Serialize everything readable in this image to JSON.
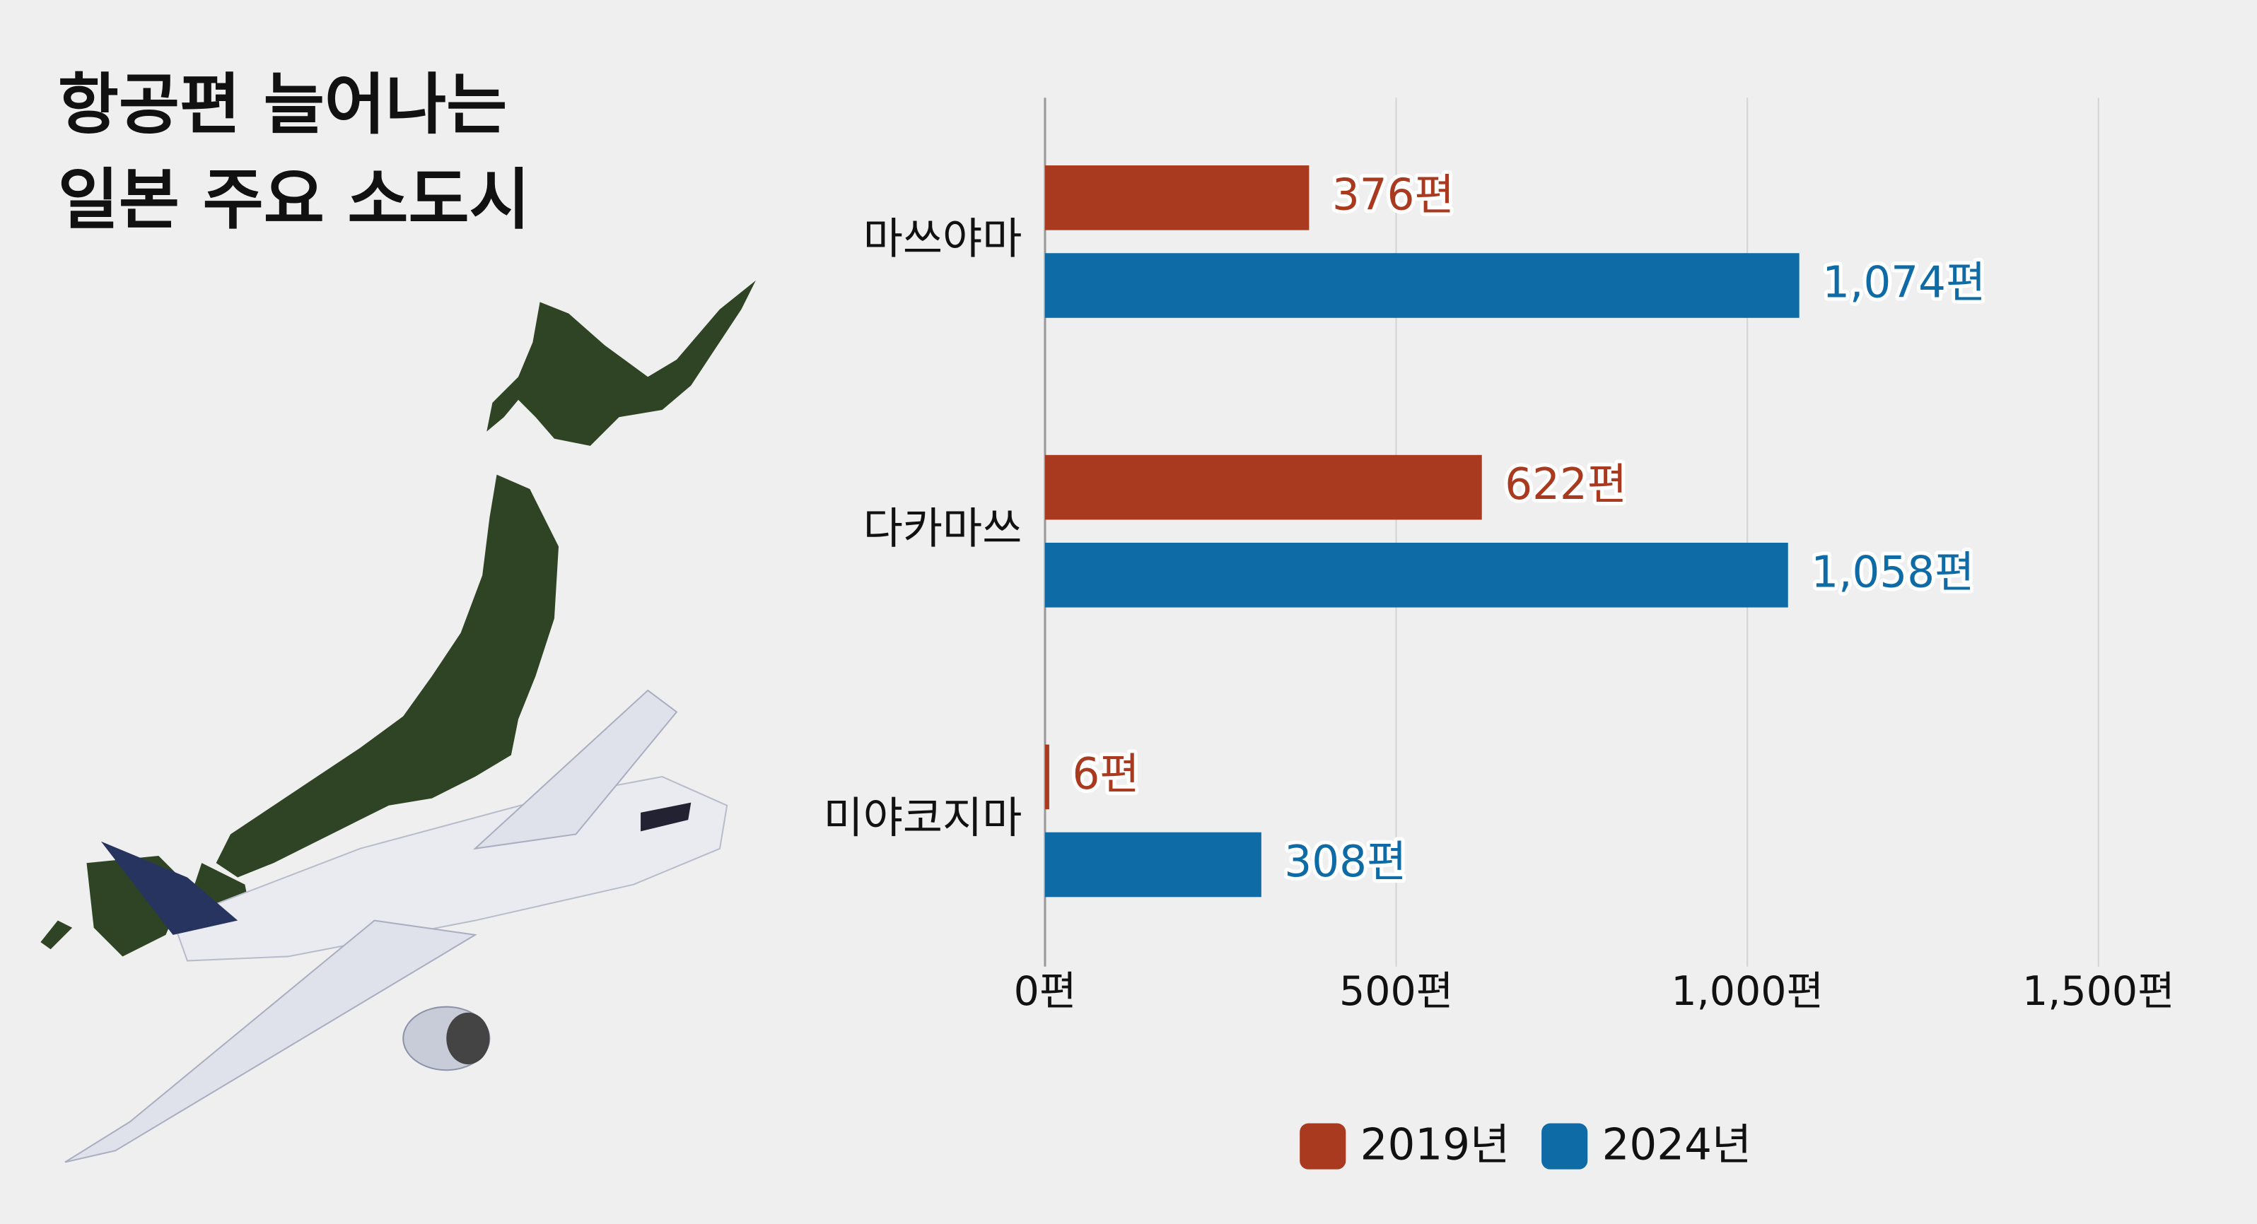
{
  "chart_data": {
    "type": "bar",
    "orientation": "horizontal",
    "title": [
      "항공편 늘어나는",
      "일본 주요 소도시"
    ],
    "categories": [
      "마쓰야마",
      "다카마쓰",
      "미야코지마"
    ],
    "series": [
      {
        "name": "2019년",
        "color": "#a93a1f",
        "values": [
          376,
          622,
          6
        ],
        "value_labels": [
          "376편",
          "622편",
          "6편"
        ]
      },
      {
        "name": "2024년",
        "color": "#0f6ba5",
        "values": [
          1074,
          1058,
          308
        ],
        "value_labels": [
          "1,074편",
          "1,058편",
          "308편"
        ]
      }
    ],
    "xlim": [
      0,
      1500
    ],
    "xticks": [
      {
        "value": 0,
        "label": "0편"
      },
      {
        "value": 500,
        "label": "500편"
      },
      {
        "value": 1000,
        "label": "1,000편"
      },
      {
        "value": 1500,
        "label": "1,500편"
      }
    ],
    "grid": true,
    "legend": "bottom"
  }
}
